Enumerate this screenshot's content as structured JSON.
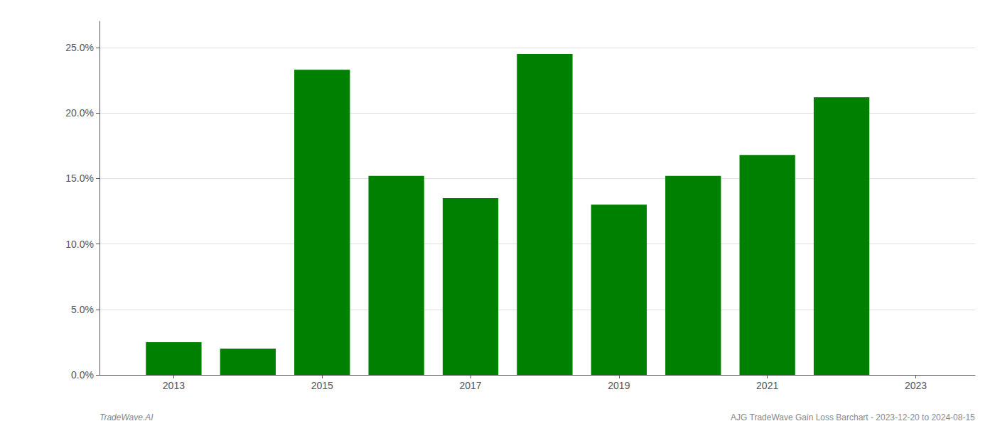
{
  "chart_data": {
    "type": "bar",
    "x": [
      2013,
      2014,
      2015,
      2016,
      2017,
      2018,
      2019,
      2020,
      2021,
      2022
    ],
    "values": [
      0.025,
      0.02,
      0.233,
      0.152,
      0.135,
      0.245,
      0.13,
      0.152,
      0.168,
      0.212
    ],
    "color": "#008000",
    "xlim": [
      2012.0,
      2023.8
    ],
    "xticks": [
      2013,
      2015,
      2017,
      2019,
      2021,
      2023
    ],
    "ylim": [
      0,
      0.27
    ],
    "yticks": [
      {
        "value": 0.0,
        "label": "0.0%"
      },
      {
        "value": 0.05,
        "label": "5.0%"
      },
      {
        "value": 0.1,
        "label": "10.0%"
      },
      {
        "value": 0.15,
        "label": "15.0%"
      },
      {
        "value": 0.2,
        "label": "20.0%"
      },
      {
        "value": 0.25,
        "label": "25.0%"
      }
    ],
    "grid": true,
    "annotations": [
      "TradeWave.AI",
      "AJG TradeWave Gain Loss Barchart - 2023-12-20 to 2024-08-15"
    ]
  }
}
